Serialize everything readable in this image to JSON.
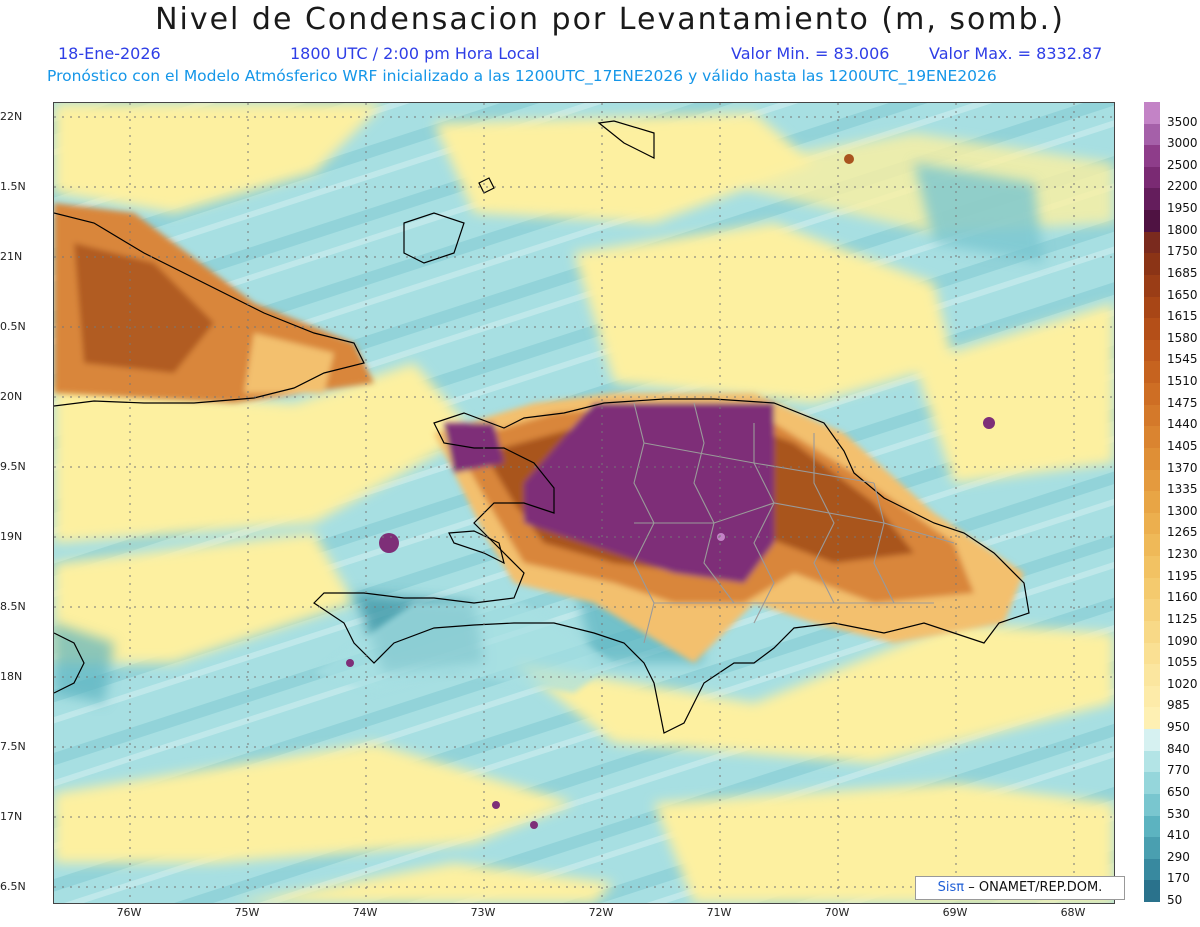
{
  "header": {
    "title": "Nivel de Condensacion por Levantamiento (m, somb.)",
    "date": "18-Ene-2026",
    "time": "1800 UTC / 2:00 pm Hora Local",
    "min_value": "Valor Min. = 83.006",
    "max_value": "Valor Max. = 8332.87",
    "forecast_note": "Pronóstico con el Modelo Atmósferico WRF inicializado a las 1200UTC_17ENE2026 y válido hasta las  1200UTC_19ENE2026"
  },
  "map": {
    "lat_labels": [
      "22N",
      "1.5N",
      "21N",
      "0.5N",
      "20N",
      "9.5N",
      "19N",
      "8.5N",
      "18N",
      "7.5N",
      "17N",
      "6.5N"
    ],
    "lon_labels": [
      "76W",
      "75W",
      "74W",
      "73W",
      "72W",
      "71W",
      "70W",
      "69W",
      "68W"
    ],
    "colors": {
      "sea_light": "#a7dfe2",
      "sea_mid": "#7fc8d2",
      "sea_dark": "#3f97a8",
      "yellow": "#fdf0a0",
      "orange_light": "#f3c06e",
      "orange": "#d9863a",
      "brown": "#a9541f",
      "purple": "#7e2f78",
      "coast": "#000000",
      "border": "#9a9a9a"
    }
  },
  "colorbar": {
    "labels": [
      "3500",
      "3000",
      "2500",
      "2200",
      "1950",
      "1800",
      "1750",
      "1685",
      "1650",
      "1615",
      "1580",
      "1545",
      "1510",
      "1475",
      "1440",
      "1405",
      "1370",
      "1335",
      "1300",
      "1265",
      "1230",
      "1195",
      "1160",
      "1125",
      "1090",
      "1055",
      "1020",
      "985",
      "950",
      "840",
      "770",
      "650",
      "530",
      "410",
      "290",
      "170",
      "50"
    ],
    "colors": [
      "#c383c6",
      "#a560a9",
      "#8e3d8a",
      "#7a2a73",
      "#641d5c",
      "#4f1242",
      "#7a2a1e",
      "#8b3416",
      "#9a3d16",
      "#a84616",
      "#b44f18",
      "#be581c",
      "#c6631f",
      "#ce6e24",
      "#d4792a",
      "#da8430",
      "#df8f36",
      "#e49a3e",
      "#e8a545",
      "#ecaf4e",
      "#efb958",
      "#f2c263",
      "#f4ca6e",
      "#f6d17a",
      "#f8d987",
      "#fae093",
      "#fbe69f",
      "#fdeba9",
      "#fef0b3",
      "#d6f1f1",
      "#b3e4e6",
      "#95d6db",
      "#79c6cf",
      "#5cb3c0",
      "#4a9fb0",
      "#38899f",
      "#2a728c"
    ]
  },
  "credit": {
    "logo": "Sisπ",
    "text": "– ONAMET/REP.DOM."
  }
}
